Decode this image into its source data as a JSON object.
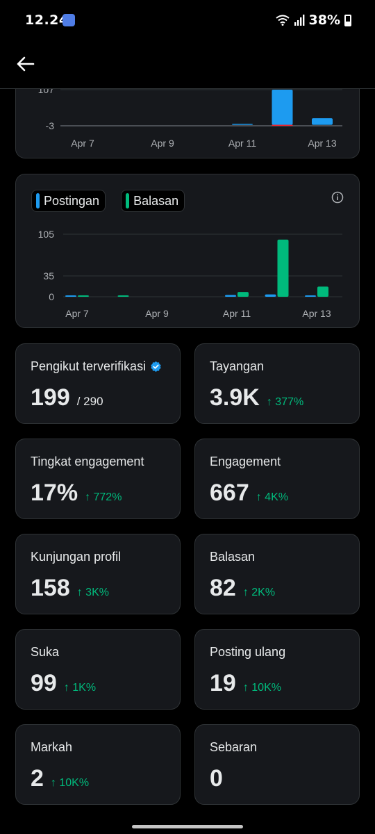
{
  "status_bar": {
    "time": "12.24",
    "battery": "38%"
  },
  "charts": {
    "top": {
      "ytick_labels": [
        "107",
        "-3"
      ],
      "xtick_labels": [
        "Apr 7",
        "Apr 9",
        "Apr 11",
        "Apr 13"
      ]
    },
    "bottom": {
      "legend": [
        "Postingan",
        "Balasan"
      ],
      "ytick_labels": [
        "105",
        "35",
        "0"
      ],
      "xtick_labels": [
        "Apr 7",
        "Apr 9",
        "Apr 11",
        "Apr 13"
      ]
    }
  },
  "chart_data": [
    {
      "type": "bar",
      "categories": [
        "Apr 7",
        "Apr 8",
        "Apr 9",
        "Apr 10",
        "Apr 11",
        "Apr 12",
        "Apr 13"
      ],
      "series": [
        {
          "name": "",
          "values": [
            0,
            0,
            0,
            0,
            1,
            107,
            20
          ],
          "color": "#1d9bf0"
        },
        {
          "name": "",
          "values": [
            0,
            0,
            0,
            0,
            0,
            -3,
            0
          ],
          "color": "#f4212e"
        }
      ],
      "ylim": [
        -3,
        107
      ]
    },
    {
      "type": "bar",
      "categories": [
        "Apr 7",
        "Apr 8",
        "Apr 9",
        "Apr 10",
        "Apr 11",
        "Apr 12",
        "Apr 13"
      ],
      "series": [
        {
          "name": "Postingan",
          "values": [
            1,
            0,
            0,
            0,
            3,
            4,
            2
          ],
          "color": "#1d9bf0"
        },
        {
          "name": "Balasan",
          "values": [
            1,
            1,
            0,
            0,
            8,
            96,
            17
          ],
          "color": "#00ba7c"
        }
      ],
      "ylim": [
        0,
        105
      ],
      "grid": true,
      "legend_position": "top-left"
    }
  ],
  "stats": [
    {
      "label": "Pengikut terverifikasi",
      "value": "199",
      "sub": "/ 290",
      "change": "",
      "verified": true
    },
    {
      "label": "Tayangan",
      "value": "3.9K",
      "sub": "",
      "change": "↑ 377%"
    },
    {
      "label": "Tingkat engagement",
      "value": "17%",
      "sub": "",
      "change": "↑ 772%"
    },
    {
      "label": "Engagement",
      "value": "667",
      "sub": "",
      "change": "↑ 4K%"
    },
    {
      "label": "Kunjungan profil",
      "value": "158",
      "sub": "",
      "change": "↑ 3K%"
    },
    {
      "label": "Balasan",
      "value": "82",
      "sub": "",
      "change": "↑ 2K%"
    },
    {
      "label": "Suka",
      "value": "99",
      "sub": "",
      "change": "↑ 1K%"
    },
    {
      "label": "Posting ulang",
      "value": "19",
      "sub": "",
      "change": "↑ 10K%"
    },
    {
      "label": "Markah",
      "value": "2",
      "sub": "",
      "change": "↑ 10K%"
    },
    {
      "label": "Sebaran",
      "value": "0",
      "sub": "",
      "change": ""
    }
  ],
  "colors": {
    "accent_blue": "#1d9bf0",
    "accent_green": "#00ba7c",
    "negative_red": "#f4212e",
    "card_bg": "#16181c",
    "border": "#2f3336"
  },
  "icons": {
    "back": "arrow-left-icon",
    "info": "info-icon",
    "verified": "verified-badge-icon"
  }
}
